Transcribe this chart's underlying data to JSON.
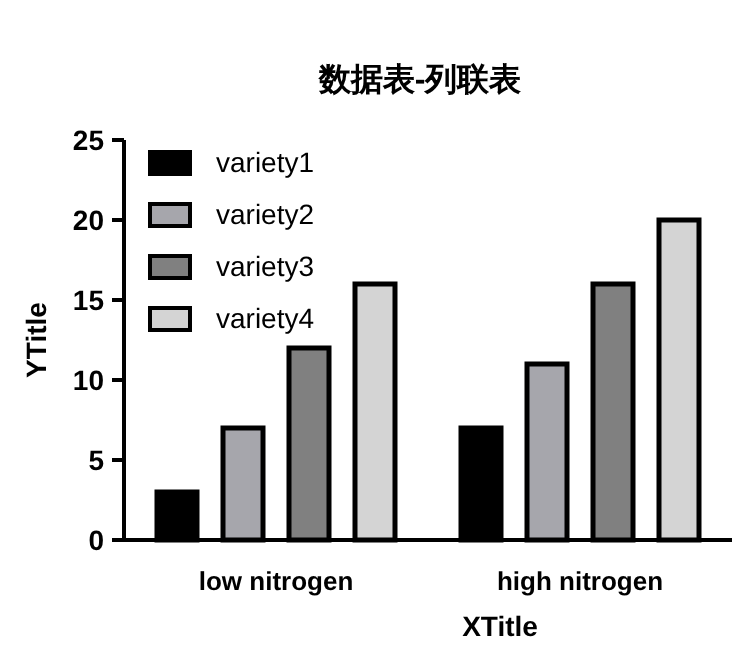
{
  "chart_data": {
    "type": "bar",
    "title": "数据表-列联表",
    "xlabel": "XTitle",
    "ylabel": "YTitle",
    "categories": [
      "low nitrogen",
      "high nitrogen"
    ],
    "series": [
      {
        "name": "variety1",
        "color": "#000000",
        "values": [
          3,
          7
        ]
      },
      {
        "name": "variety2",
        "color": "#a6a6ac",
        "values": [
          7,
          11
        ]
      },
      {
        "name": "variety3",
        "color": "#808080",
        "values": [
          12,
          16
        ]
      },
      {
        "name": "variety4",
        "color": "#d4d4d4",
        "values": [
          16,
          20
        ]
      }
    ],
    "ylim": [
      0,
      25
    ],
    "yticks": [
      0,
      5,
      10,
      15,
      20,
      25
    ],
    "legend": "top left",
    "grid": false
  }
}
